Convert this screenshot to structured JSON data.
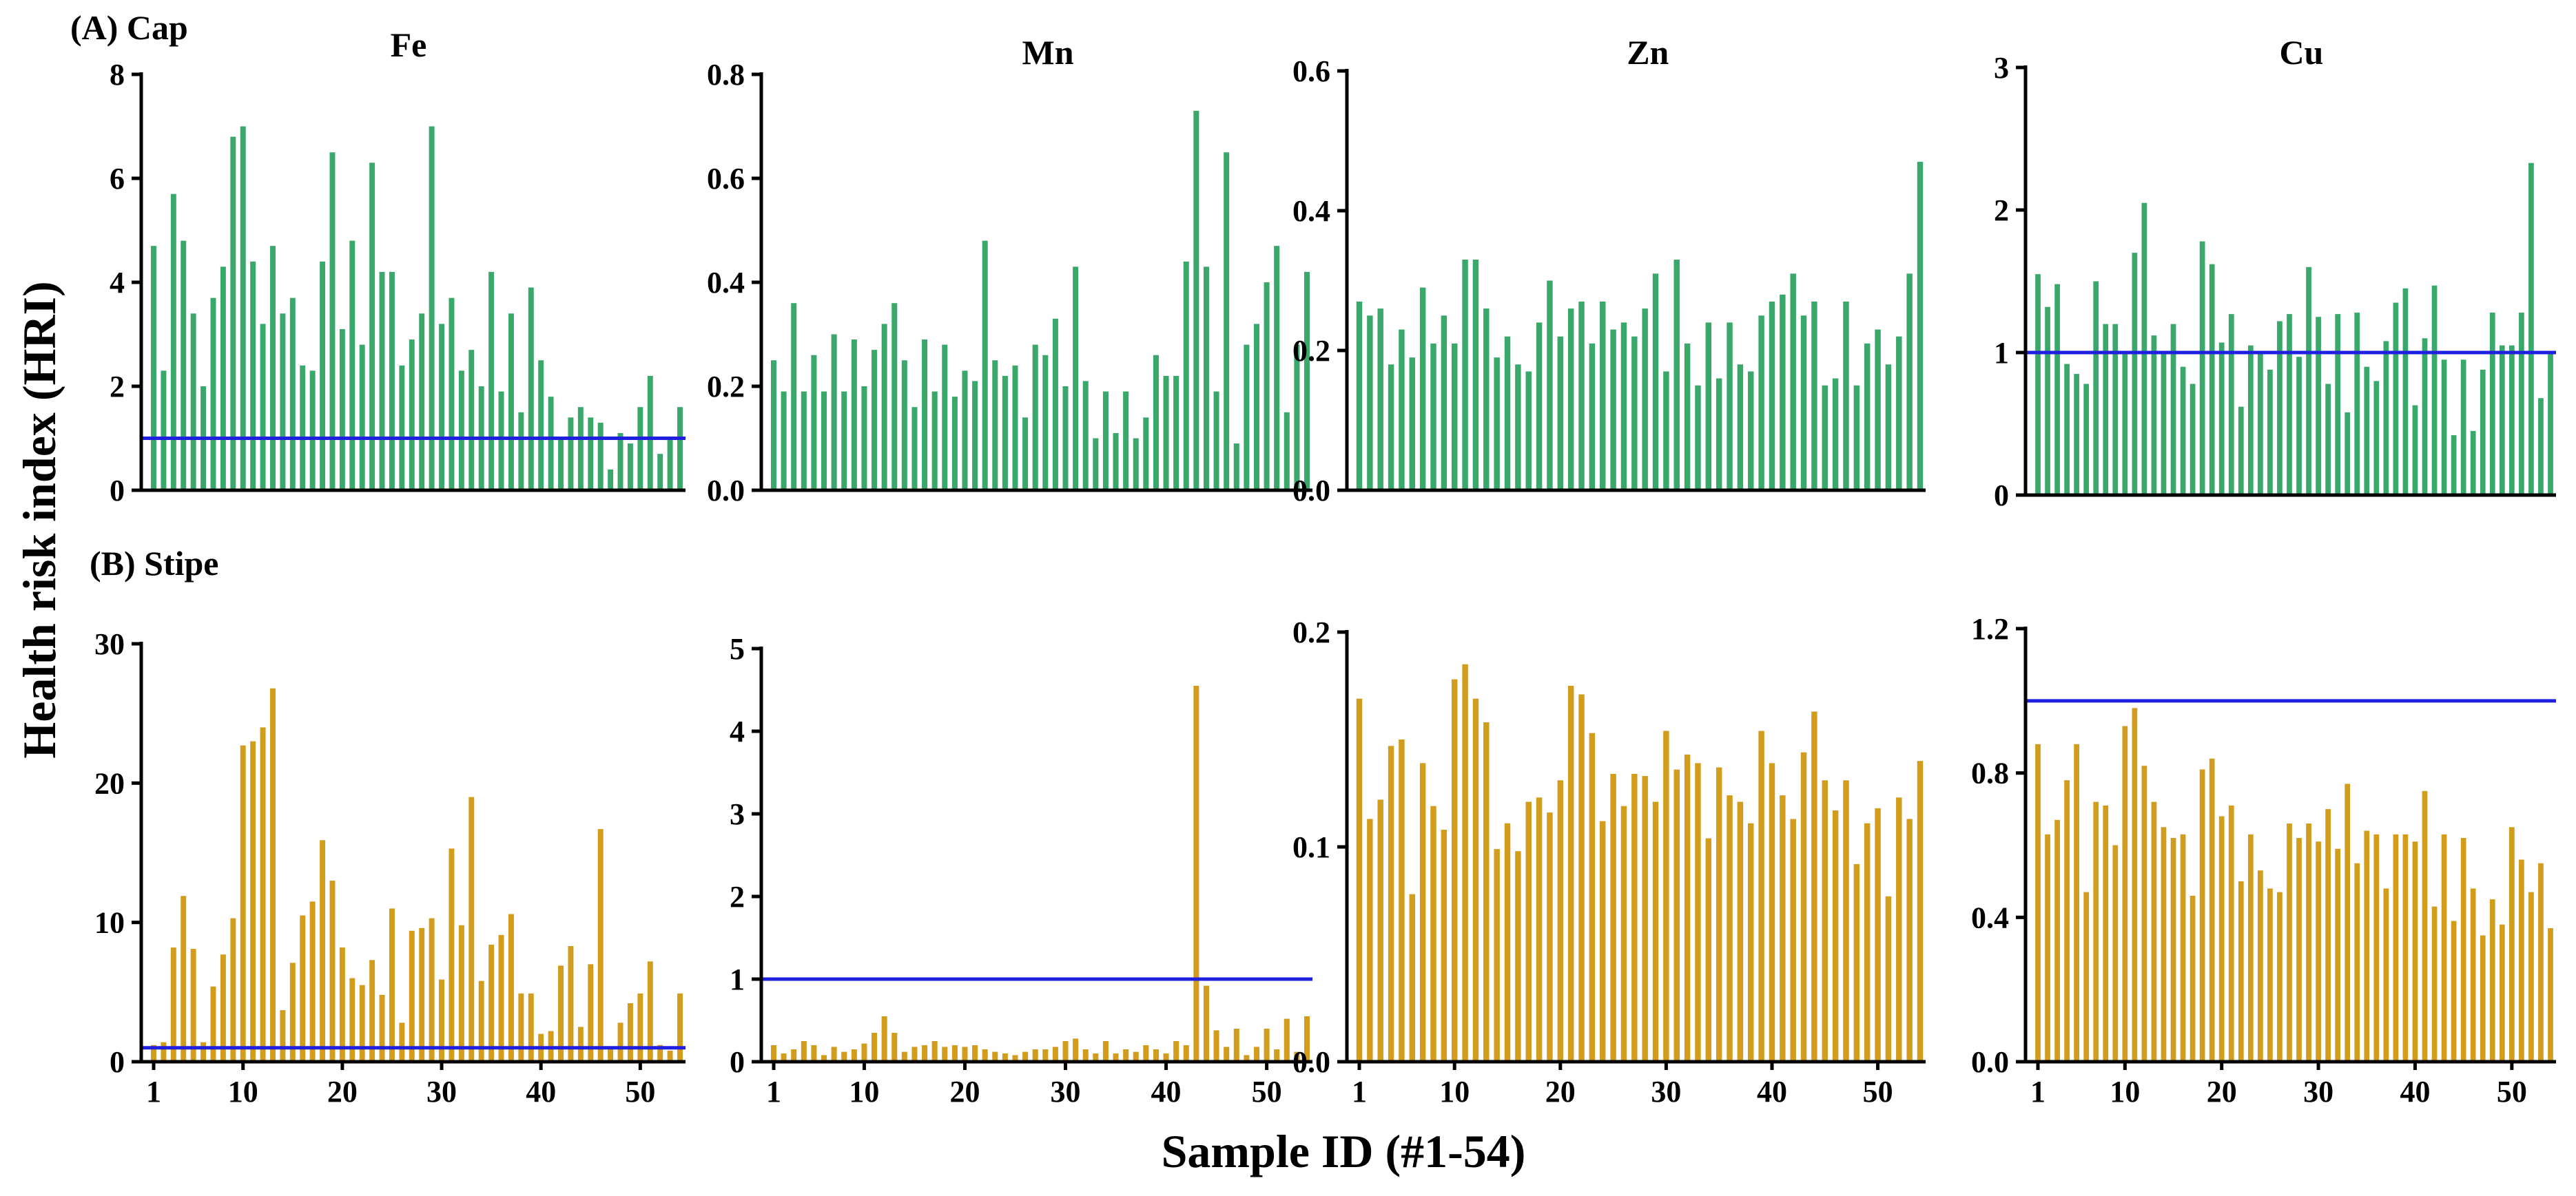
{
  "figure": {
    "ylabel": "Health risk index (HRI)",
    "xlabel": "Sample ID (#1-54)",
    "row_labels": [
      "(A) Cap",
      "(B) Stipe"
    ],
    "colors": {
      "cap": "#3aa86b",
      "stipe": "#d29c1c",
      "reference_line": "#1f1fe0",
      "axis": "#000000"
    },
    "reference_value": 1
  },
  "chart_data": [
    {
      "type": "bar",
      "group": "(A) Cap",
      "title": "Fe",
      "x": [
        1,
        2,
        3,
        4,
        5,
        6,
        7,
        8,
        9,
        10,
        11,
        12,
        13,
        14,
        15,
        16,
        17,
        18,
        19,
        20,
        21,
        22,
        23,
        24,
        25,
        26,
        27,
        28,
        29,
        30,
        31,
        32,
        33,
        34,
        35,
        36,
        37,
        38,
        39,
        40,
        41,
        42,
        43,
        44,
        45,
        46,
        47,
        48,
        49,
        50,
        51,
        52,
        53,
        54
      ],
      "values": [
        4.7,
        2.3,
        5.7,
        4.8,
        3.4,
        2.0,
        3.7,
        4.3,
        6.8,
        7.0,
        4.4,
        3.2,
        4.7,
        3.4,
        3.7,
        2.4,
        2.3,
        4.4,
        6.5,
        3.1,
        4.8,
        2.8,
        6.3,
        4.2,
        4.2,
        2.4,
        2.9,
        3.4,
        7.0,
        3.2,
        3.7,
        2.3,
        2.7,
        2.0,
        4.2,
        1.9,
        3.4,
        1.5,
        3.9,
        2.5,
        1.8,
        1.0,
        1.4,
        1.6,
        1.4,
        1.3,
        0.4,
        1.1,
        0.9,
        1.6,
        2.2,
        0.7,
        1.0,
        1.6
      ],
      "ylim": [
        0,
        8
      ],
      "yticks": [
        "0",
        "2",
        "4",
        "6",
        "8"
      ],
      "xticks": [],
      "reference_line": 1
    },
    {
      "type": "bar",
      "group": "(A) Cap",
      "title": "Mn",
      "x": [
        1,
        2,
        3,
        4,
        5,
        6,
        7,
        8,
        9,
        10,
        11,
        12,
        13,
        14,
        15,
        16,
        17,
        18,
        19,
        20,
        21,
        22,
        23,
        24,
        25,
        26,
        27,
        28,
        29,
        30,
        31,
        32,
        33,
        34,
        35,
        36,
        37,
        38,
        39,
        40,
        41,
        42,
        43,
        44,
        45,
        46,
        47,
        48,
        49,
        50,
        51,
        52,
        53,
        54
      ],
      "values": [
        0.25,
        0.19,
        0.36,
        0.19,
        0.26,
        0.19,
        0.3,
        0.19,
        0.29,
        0.2,
        0.27,
        0.32,
        0.36,
        0.25,
        0.16,
        0.29,
        0.19,
        0.28,
        0.18,
        0.23,
        0.21,
        0.48,
        0.25,
        0.22,
        0.24,
        0.14,
        0.28,
        0.26,
        0.33,
        0.2,
        0.43,
        0.21,
        0.1,
        0.19,
        0.11,
        0.19,
        0.1,
        0.14,
        0.26,
        0.22,
        0.22,
        0.44,
        0.73,
        0.43,
        0.19,
        0.65,
        0.09,
        0.28,
        0.32,
        0.4,
        0.47,
        0.15,
        0.28,
        0.42
      ],
      "ylim": [
        0,
        0.8
      ],
      "yticks": [
        "0.0",
        "0.2",
        "0.4",
        "0.6",
        "0.8"
      ],
      "xticks": [],
      "reference_line": null
    },
    {
      "type": "bar",
      "group": "(A) Cap",
      "title": "Zn",
      "x": [
        1,
        2,
        3,
        4,
        5,
        6,
        7,
        8,
        9,
        10,
        11,
        12,
        13,
        14,
        15,
        16,
        17,
        18,
        19,
        20,
        21,
        22,
        23,
        24,
        25,
        26,
        27,
        28,
        29,
        30,
        31,
        32,
        33,
        34,
        35,
        36,
        37,
        38,
        39,
        40,
        41,
        42,
        43,
        44,
        45,
        46,
        47,
        48,
        49,
        50,
        51,
        52,
        53,
        54
      ],
      "values": [
        0.27,
        0.25,
        0.26,
        0.18,
        0.23,
        0.19,
        0.29,
        0.21,
        0.25,
        0.21,
        0.33,
        0.33,
        0.26,
        0.19,
        0.22,
        0.18,
        0.17,
        0.24,
        0.3,
        0.22,
        0.26,
        0.27,
        0.21,
        0.27,
        0.23,
        0.24,
        0.22,
        0.26,
        0.31,
        0.17,
        0.33,
        0.21,
        0.15,
        0.24,
        0.16,
        0.24,
        0.18,
        0.17,
        0.25,
        0.27,
        0.28,
        0.31,
        0.25,
        0.27,
        0.15,
        0.16,
        0.27,
        0.15,
        0.21,
        0.23,
        0.18,
        0.22,
        0.31,
        0.47
      ],
      "ylim": [
        0,
        0.6
      ],
      "yticks": [
        "0.0",
        "0.2",
        "0.4",
        "0.6"
      ],
      "xticks": [],
      "reference_line": null
    },
    {
      "type": "bar",
      "group": "(A) Cap",
      "title": "Cu",
      "x": [
        1,
        2,
        3,
        4,
        5,
        6,
        7,
        8,
        9,
        10,
        11,
        12,
        13,
        14,
        15,
        16,
        17,
        18,
        19,
        20,
        21,
        22,
        23,
        24,
        25,
        26,
        27,
        28,
        29,
        30,
        31,
        32,
        33,
        34,
        35,
        36,
        37,
        38,
        39,
        40,
        41,
        42,
        43,
        44,
        45,
        46,
        47,
        48,
        49,
        50,
        51,
        52,
        53,
        54
      ],
      "values": [
        1.55,
        1.32,
        1.48,
        0.92,
        0.85,
        0.78,
        1.5,
        1.2,
        1.2,
        1.0,
        1.7,
        2.05,
        1.12,
        1.0,
        1.2,
        0.9,
        0.78,
        1.78,
        1.62,
        1.07,
        1.27,
        0.62,
        1.05,
        1.0,
        0.88,
        1.22,
        1.27,
        0.97,
        1.6,
        1.25,
        0.78,
        1.27,
        0.58,
        1.28,
        0.9,
        0.8,
        1.08,
        1.35,
        1.45,
        0.63,
        1.1,
        1.47,
        0.95,
        0.42,
        0.95,
        0.45,
        0.88,
        1.28,
        1.05,
        1.05,
        1.28,
        2.33,
        0.68,
        1.0
      ],
      "ylim": [
        0,
        3
      ],
      "yticks": [
        "0",
        "1",
        "2",
        "3"
      ],
      "xticks": [],
      "reference_line": 1
    },
    {
      "type": "bar",
      "group": "(B) Stipe",
      "title": "",
      "x": [
        1,
        2,
        3,
        4,
        5,
        6,
        7,
        8,
        9,
        10,
        11,
        12,
        13,
        14,
        15,
        16,
        17,
        18,
        19,
        20,
        21,
        22,
        23,
        24,
        25,
        26,
        27,
        28,
        29,
        30,
        31,
        32,
        33,
        34,
        35,
        36,
        37,
        38,
        39,
        40,
        41,
        42,
        43,
        44,
        45,
        46,
        47,
        48,
        49,
        50,
        51,
        52,
        53,
        54
      ],
      "values": [
        1.2,
        1.4,
        8.2,
        11.9,
        8.1,
        1.4,
        5.4,
        7.7,
        10.3,
        22.7,
        23.0,
        24.0,
        26.8,
        3.7,
        7.1,
        10.5,
        11.5,
        15.9,
        13.0,
        8.2,
        6.0,
        5.5,
        7.3,
        4.8,
        11.0,
        2.8,
        9.4,
        9.6,
        10.3,
        5.9,
        15.3,
        9.8,
        19.0,
        5.8,
        8.4,
        9.1,
        10.6,
        4.9,
        4.9,
        2.0,
        2.2,
        6.9,
        8.3,
        2.5,
        7.0,
        16.7,
        0.9,
        2.8,
        4.2,
        4.9,
        7.2,
        1.2,
        0.8,
        4.9
      ],
      "ylim": [
        0,
        30
      ],
      "yticks": [
        "0",
        "10",
        "20",
        "30"
      ],
      "xticks": [
        "1",
        "10",
        "20",
        "30",
        "40",
        "50"
      ],
      "reference_line": 1
    },
    {
      "type": "bar",
      "group": "(B) Stipe",
      "title": "",
      "x": [
        1,
        2,
        3,
        4,
        5,
        6,
        7,
        8,
        9,
        10,
        11,
        12,
        13,
        14,
        15,
        16,
        17,
        18,
        19,
        20,
        21,
        22,
        23,
        24,
        25,
        26,
        27,
        28,
        29,
        30,
        31,
        32,
        33,
        34,
        35,
        36,
        37,
        38,
        39,
        40,
        41,
        42,
        43,
        44,
        45,
        46,
        47,
        48,
        49,
        50,
        51,
        52,
        53,
        54
      ],
      "values": [
        0.2,
        0.1,
        0.15,
        0.25,
        0.2,
        0.08,
        0.18,
        0.12,
        0.15,
        0.22,
        0.35,
        0.55,
        0.35,
        0.12,
        0.18,
        0.2,
        0.25,
        0.18,
        0.2,
        0.18,
        0.2,
        0.15,
        0.12,
        0.1,
        0.08,
        0.12,
        0.15,
        0.15,
        0.18,
        0.25,
        0.28,
        0.15,
        0.1,
        0.25,
        0.1,
        0.15,
        0.12,
        0.2,
        0.15,
        0.1,
        0.25,
        0.2,
        4.55,
        0.92,
        0.38,
        0.18,
        0.4,
        0.08,
        0.18,
        0.4,
        0.15,
        0.52,
        0.12,
        0.55
      ],
      "ylim": [
        0,
        5
      ],
      "yticks": [
        "0",
        "1",
        "2",
        "3",
        "4",
        "5"
      ],
      "xticks": [
        "1",
        "10",
        "20",
        "30",
        "40",
        "50"
      ],
      "reference_line": 1
    },
    {
      "type": "bar",
      "group": "(B) Stipe",
      "title": "",
      "x": [
        1,
        2,
        3,
        4,
        5,
        6,
        7,
        8,
        9,
        10,
        11,
        12,
        13,
        14,
        15,
        16,
        17,
        18,
        19,
        20,
        21,
        22,
        23,
        24,
        25,
        26,
        27,
        28,
        29,
        30,
        31,
        32,
        33,
        34,
        35,
        36,
        37,
        38,
        39,
        40,
        41,
        42,
        43,
        44,
        45,
        46,
        47,
        48,
        49,
        50,
        51,
        52,
        53,
        54
      ],
      "values": [
        0.169,
        0.113,
        0.122,
        0.147,
        0.15,
        0.078,
        0.139,
        0.119,
        0.108,
        0.178,
        0.185,
        0.169,
        0.158,
        0.099,
        0.111,
        0.098,
        0.121,
        0.123,
        0.116,
        0.131,
        0.175,
        0.171,
        0.153,
        0.112,
        0.134,
        0.119,
        0.134,
        0.133,
        0.121,
        0.154,
        0.136,
        0.143,
        0.139,
        0.104,
        0.137,
        0.124,
        0.121,
        0.111,
        0.154,
        0.139,
        0.124,
        0.113,
        0.144,
        0.163,
        0.131,
        0.117,
        0.131,
        0.092,
        0.111,
        0.118,
        0.077,
        0.123,
        0.113,
        0.14
      ],
      "ylim": [
        0,
        0.2
      ],
      "yticks": [
        "0.0",
        "0.1",
        "0.2"
      ],
      "xticks": [
        "1",
        "10",
        "20",
        "30",
        "40",
        "50"
      ],
      "reference_line": null
    },
    {
      "type": "bar",
      "group": "(B) Stipe",
      "title": "",
      "x": [
        1,
        2,
        3,
        4,
        5,
        6,
        7,
        8,
        9,
        10,
        11,
        12,
        13,
        14,
        15,
        16,
        17,
        18,
        19,
        20,
        21,
        22,
        23,
        24,
        25,
        26,
        27,
        28,
        29,
        30,
        31,
        32,
        33,
        34,
        35,
        36,
        37,
        38,
        39,
        40,
        41,
        42,
        43,
        44,
        45,
        46,
        47,
        48,
        49,
        50,
        51,
        52,
        53,
        54
      ],
      "values": [
        0.88,
        0.63,
        0.67,
        0.78,
        0.88,
        0.47,
        0.72,
        0.71,
        0.6,
        0.93,
        0.98,
        0.82,
        0.72,
        0.65,
        0.62,
        0.63,
        0.46,
        0.81,
        0.84,
        0.68,
        0.71,
        0.5,
        0.63,
        0.53,
        0.48,
        0.47,
        0.66,
        0.62,
        0.66,
        0.61,
        0.7,
        0.59,
        0.77,
        0.55,
        0.64,
        0.63,
        0.48,
        0.63,
        0.63,
        0.61,
        0.75,
        0.43,
        0.63,
        0.39,
        0.62,
        0.48,
        0.35,
        0.45,
        0.38,
        0.65,
        0.56,
        0.47,
        0.55,
        0.37
      ],
      "ylim": [
        0,
        1.2
      ],
      "yticks": [
        "0.0",
        "0.4",
        "0.8",
        "1.2"
      ],
      "xticks": [
        "1",
        "10",
        "20",
        "30",
        "40",
        "50"
      ],
      "reference_line": 1
    }
  ]
}
